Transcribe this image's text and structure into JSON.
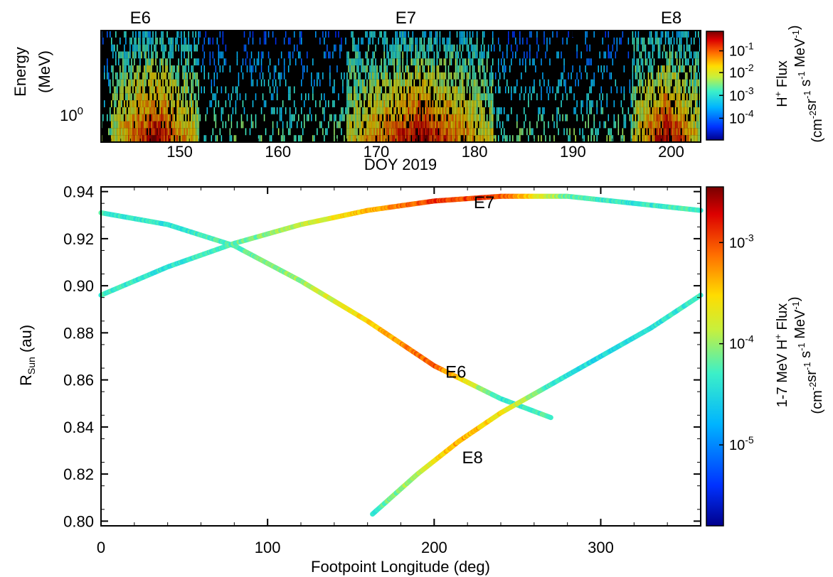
{
  "chart_data": [
    {
      "type": "heatmap",
      "panel": "top",
      "xlabel": "DOY 2019",
      "ylabel_line1": "Energy",
      "ylabel_line2": "(MeV)",
      "y_scale": "log",
      "x_range": [
        142,
        203
      ],
      "x_ticks": [
        150,
        160,
        170,
        180,
        190,
        200
      ],
      "x_tick_labels": [
        "150",
        "160",
        "170",
        "180",
        "190",
        "200"
      ],
      "y_tick_label_base": "10",
      "y_tick_label_exp": "0",
      "events": [
        {
          "label": "E6",
          "doy": 146,
          "doy_range": [
            144,
            151
          ]
        },
        {
          "label": "E7",
          "doy": 173,
          "doy_range": [
            168,
            181
          ]
        },
        {
          "label": "E8",
          "doy": 200,
          "doy_range": [
            197,
            202
          ]
        }
      ],
      "colorbar": {
        "title": "H",
        "title_sup": "+",
        "title_rest": " Flux",
        "units_parts": [
          {
            "t": "(cm",
            "s": false
          },
          {
            "t": "-2",
            "s": true
          },
          {
            "t": "sr",
            "s": false
          },
          {
            "t": "-1",
            "s": true
          },
          {
            "t": " s",
            "s": false
          },
          {
            "t": "-1",
            "s": true
          },
          {
            "t": " MeV",
            "s": false
          },
          {
            "t": "-1",
            "s": true
          },
          {
            "t": ")",
            "s": false
          }
        ],
        "tick_labels": [
          {
            "base": "10",
            "exp": "-1",
            "frac": 0.18
          },
          {
            "base": "10",
            "exp": "-2",
            "frac": 0.38
          },
          {
            "base": "10",
            "exp": "-3",
            "frac": 0.59
          },
          {
            "base": "10",
            "exp": "-4",
            "frac": 0.8
          }
        ]
      }
    },
    {
      "type": "scatter",
      "panel": "bottom",
      "xlabel": "Footpoint Longitude (deg)",
      "ylabel_base": "R",
      "ylabel_sub": "Sun",
      "ylabel_rest": " (au)",
      "xlim": [
        0,
        360
      ],
      "ylim": [
        0.798,
        0.942
      ],
      "x_ticks": [
        0,
        100,
        200,
        300
      ],
      "y_ticks": [
        0.8,
        0.82,
        0.84,
        0.86,
        0.88,
        0.9,
        0.92,
        0.94
      ],
      "y_tick_labels": [
        "0.80",
        "0.82",
        "0.84",
        "0.86",
        "0.88",
        "0.90",
        "0.92",
        "0.94"
      ],
      "series": [
        {
          "name": "E6",
          "x": [
            0,
            40,
            80,
            120,
            160,
            200,
            240,
            270
          ],
          "y": [
            0.931,
            0.926,
            0.917,
            0.902,
            0.885,
            0.866,
            0.852,
            0.844
          ],
          "log_flux": [
            -4.3,
            -4.4,
            -4.2,
            -4.0,
            -3.5,
            -3.0,
            -4.4,
            -4.2
          ]
        },
        {
          "name": "E7",
          "x": [
            0,
            40,
            80,
            120,
            160,
            200,
            240,
            280,
            320,
            360
          ],
          "y": [
            0.896,
            0.908,
            0.918,
            0.926,
            0.932,
            0.936,
            0.938,
            0.938,
            0.935,
            0.932
          ],
          "log_flux": [
            -4.3,
            -4.4,
            -4.2,
            -3.9,
            -3.4,
            -2.9,
            -3.0,
            -4.2,
            -4.4,
            -4.2
          ]
        },
        {
          "name": "E8",
          "x": [
            163,
            190,
            215,
            240,
            270,
            300,
            330,
            360
          ],
          "y": [
            0.803,
            0.82,
            0.834,
            0.846,
            0.858,
            0.87,
            0.882,
            0.896
          ],
          "log_flux": [
            -4.3,
            -3.9,
            -3.3,
            -3.6,
            -4.3,
            -4.5,
            -4.4,
            -4.3
          ]
        }
      ],
      "annotations": [
        {
          "text": "E7",
          "x": 230,
          "y": 0.933
        },
        {
          "text": "E6",
          "x": 213,
          "y": 0.861
        },
        {
          "text": "E8",
          "x": 223,
          "y": 0.8245
        }
      ],
      "colorbar": {
        "title": "1-7 MeV H",
        "title_sup": "+",
        "title_rest": " Flux",
        "units_parts": [
          {
            "t": "(cm",
            "s": false
          },
          {
            "t": "-2",
            "s": true
          },
          {
            "t": "sr",
            "s": false
          },
          {
            "t": "-1",
            "s": true
          },
          {
            "t": " s",
            "s": false
          },
          {
            "t": "-1",
            "s": true
          },
          {
            "t": " MeV",
            "s": false
          },
          {
            "t": "-1",
            "s": true
          },
          {
            "t": ")",
            "s": false
          }
        ],
        "log_range": [
          -5.8,
          -2.45
        ],
        "tick_labels": [
          {
            "base": "10",
            "exp": "-3",
            "log": -3
          },
          {
            "base": "10",
            "exp": "-4",
            "log": -4
          },
          {
            "base": "10",
            "exp": "-5",
            "log": -5
          }
        ]
      }
    }
  ]
}
